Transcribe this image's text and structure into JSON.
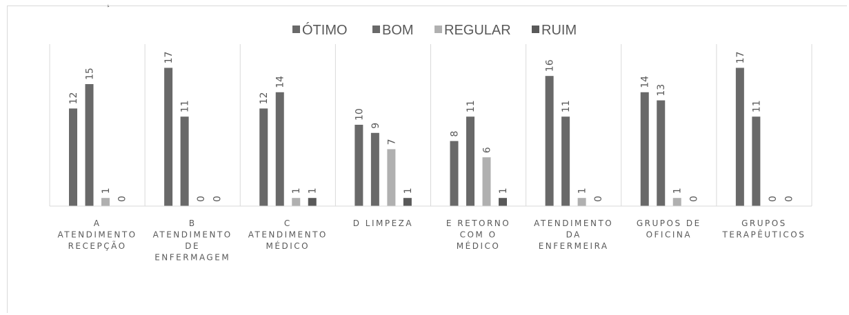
{
  "cut_glyph": "̧",
  "chart_data": {
    "type": "bar",
    "title": "",
    "xlabel": "",
    "ylabel": "",
    "ylim": [
      0,
      20
    ],
    "grid": false,
    "legend_position": "top",
    "categories": [
      [
        "A",
        "ATENDIMENTO",
        "RECEPÇÃO"
      ],
      [
        "B",
        "ATENDIMENTO",
        "DE",
        "ENFERMAGEM"
      ],
      [
        "C",
        "ATENDIMENTO",
        "MÉDICO"
      ],
      [
        "D LIMPEZA"
      ],
      [
        "E RETORNO",
        "COM O",
        "MÉDICO"
      ],
      [
        "ATENDIMENTO",
        "DA",
        "ENFERMEIRA"
      ],
      [
        "GRUPOS DE",
        "OFICINA"
      ],
      [
        "GRUPOS",
        "TERAPÊUTICOS"
      ]
    ],
    "series": [
      {
        "name": "ÓTIMO",
        "color": "#696969",
        "values": [
          12,
          17,
          12,
          10,
          8,
          16,
          14,
          17
        ]
      },
      {
        "name": "BOM",
        "color": "#696969",
        "values": [
          15,
          11,
          14,
          9,
          11,
          11,
          13,
          11
        ]
      },
      {
        "name": "REGULAR",
        "color": "#b0b0b0",
        "values": [
          1,
          0,
          1,
          7,
          6,
          1,
          1,
          0
        ]
      },
      {
        "name": "RUIM",
        "color": "#595959",
        "values": [
          0,
          0,
          1,
          1,
          1,
          0,
          0,
          0
        ]
      }
    ]
  }
}
